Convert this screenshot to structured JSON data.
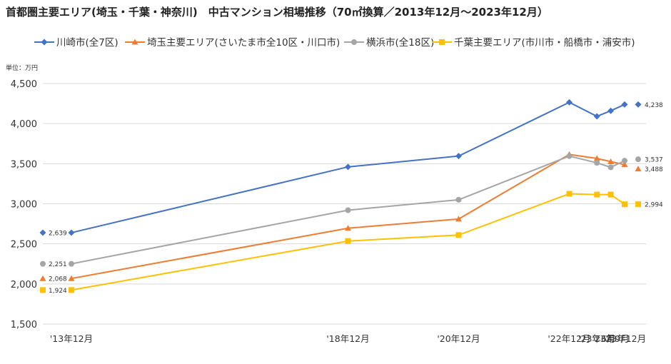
{
  "chart_data": {
    "type": "line",
    "title": "首都圏主要エリア(埼玉・千葉・神奈川)　中古マンション相場推移（70㎡換算／2013年12月～2023年12月）",
    "unit_label": "単位：万円",
    "categories": [
      "'13年12月",
      "'18年12月",
      "'20年12月",
      "'22年12月",
      "'23年6月",
      "'23年9月",
      "'23年12月"
    ],
    "category_dates": [
      2013.917,
      2018.917,
      2020.917,
      2022.917,
      2023.417,
      2023.667,
      2023.917
    ],
    "ylim": [
      1500,
      4500
    ],
    "yticks": [
      1500,
      2000,
      2500,
      3000,
      3500,
      4000,
      4500
    ],
    "ytick_labels": [
      "1,500",
      "2,000",
      "2,500",
      "3,000",
      "3,500",
      "4,000",
      "4,500"
    ],
    "grid": true,
    "legend_position": "top",
    "series": [
      {
        "name": "川崎市(全7区)",
        "marker": "diamond",
        "color": "#4472C4",
        "values": [
          2639,
          3460,
          3595,
          4265,
          4090,
          4160,
          4238
        ],
        "start_label": "2,639",
        "end_label": "4,238"
      },
      {
        "name": "埼玉主要エリア(さいたま市全10区・川口市)",
        "marker": "triangle",
        "color": "#ED7D31",
        "values": [
          2068,
          2695,
          2810,
          3615,
          3565,
          3525,
          3488
        ],
        "start_label": "2,068",
        "end_label": "3,488"
      },
      {
        "name": "横浜市(全18区)",
        "marker": "circle",
        "color": "#A5A5A5",
        "values": [
          2251,
          2920,
          3050,
          3595,
          3510,
          3455,
          3537
        ],
        "start_label": "2,251",
        "end_label": "3,537"
      },
      {
        "name": "千葉主要エリア(市川市・船橋市・浦安市)",
        "marker": "square",
        "color": "#FFC000",
        "values": [
          1924,
          2535,
          2610,
          3125,
          3115,
          3115,
          2994
        ],
        "start_label": "1,924",
        "end_label": "2,994"
      }
    ]
  }
}
